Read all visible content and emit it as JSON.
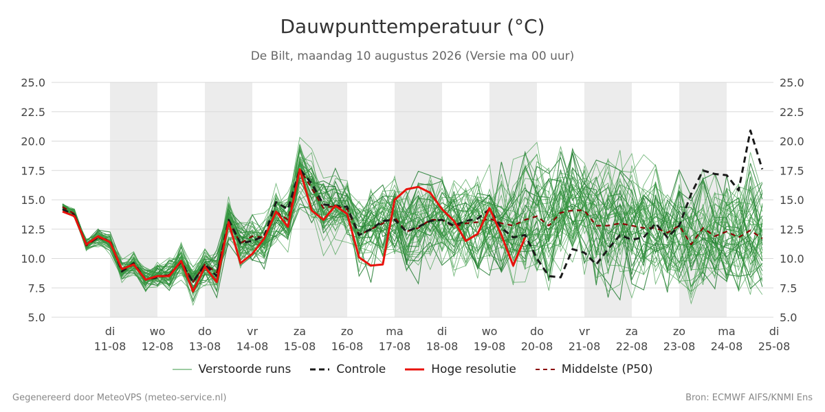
{
  "title": "Dauwpunttemperatuur (°C)",
  "subtitle": "De Bilt, maandag 10 augustus 2026 (Versie ma 00 uur)",
  "footer_left": "Gegenereerd door MeteoVPS (meteo-service.nl)",
  "footer_right": "Bron: ECMWF AIFS/KNMI Ens",
  "colors": {
    "members": "#3a9a45",
    "control": "#1a1a1a",
    "hires": "#e8120c",
    "median": "#8b0000",
    "weekend_band": "#ececec",
    "grid": "#d9d9d9"
  },
  "chart_data": {
    "type": "line",
    "ylim": [
      5.0,
      25.0
    ],
    "yticks": [
      "5.0",
      "7.5",
      "10.0",
      "12.5",
      "15.0",
      "17.5",
      "20.0",
      "22.5",
      "25.0"
    ],
    "x_day_start": 0,
    "x_day_end": 15,
    "x_ticks": [
      {
        "day": "di",
        "date": "11-08"
      },
      {
        "day": "wo",
        "date": "12-08"
      },
      {
        "day": "do",
        "date": "13-08"
      },
      {
        "day": "vr",
        "date": "14-08"
      },
      {
        "day": "za",
        "date": "15-08"
      },
      {
        "day": "zo",
        "date": "16-08"
      },
      {
        "day": "ma",
        "date": "17-08"
      },
      {
        "day": "di",
        "date": "18-08"
      },
      {
        "day": "wo",
        "date": "19-08"
      },
      {
        "day": "do",
        "date": "20-08"
      },
      {
        "day": "vr",
        "date": "21-08"
      },
      {
        "day": "za",
        "date": "22-08"
      },
      {
        "day": "zo",
        "date": "23-08"
      },
      {
        "day": "ma",
        "date": "24-08"
      },
      {
        "day": "di",
        "date": "25-08"
      }
    ],
    "shaded_days": [
      "11-08",
      "13-08",
      "15-08",
      "17-08",
      "19-08",
      "21-08",
      "23-08"
    ],
    "time_step_hours": 6,
    "members_count": 50,
    "series": [
      {
        "name": "Controle",
        "style": "dashed",
        "values": [
          14.2,
          13.7,
          11.2,
          11.8,
          11.5,
          8.9,
          9.6,
          8.2,
          8.4,
          8.6,
          9.7,
          8.0,
          9.5,
          8.5,
          13.3,
          11.3,
          11.5,
          11.9,
          14.8,
          14.2,
          17.6,
          16.4,
          14.6,
          14.5,
          14.4,
          12.0,
          12.5,
          13.2,
          13.3,
          12.3,
          12.7,
          13.2,
          13.3,
          12.8,
          13.2,
          13.4,
          14.2,
          12.6,
          11.8,
          12.0,
          10.0,
          8.5,
          8.4,
          10.8,
          10.5,
          9.5,
          10.8,
          12.0,
          11.6,
          11.8,
          13.0,
          11.8,
          12.8,
          15.5,
          17.5,
          17.2,
          17.1,
          15.8,
          20.9,
          17.6
        ]
      },
      {
        "name": "Hoge resolutie",
        "style": "solid",
        "values": [
          14.0,
          13.6,
          11.2,
          11.9,
          11.4,
          9.1,
          9.5,
          8.2,
          8.5,
          8.5,
          9.8,
          7.2,
          9.3,
          8.0,
          13.1,
          9.6,
          10.4,
          11.7,
          14.0,
          12.7,
          17.6,
          14.1,
          13.3,
          14.5,
          13.8,
          10.1,
          9.4,
          9.5,
          15.0,
          15.9,
          16.1,
          15.6,
          14.2,
          13.2,
          11.5,
          12.1,
          14.3,
          12.0,
          9.4,
          11.8
        ]
      },
      {
        "name": "Middelste (P50)",
        "style": "dashed-thin",
        "values": [
          14.4,
          13.8,
          11.1,
          11.8,
          11.4,
          8.9,
          9.5,
          8.2,
          8.5,
          8.6,
          9.8,
          8.0,
          9.5,
          8.8,
          13.2,
          11.3,
          11.9,
          11.8,
          14.0,
          13.3,
          17.6,
          16.0,
          14.3,
          14.5,
          14.2,
          12.0,
          12.5,
          13.0,
          13.5,
          12.3,
          12.6,
          13.3,
          13.3,
          12.7,
          13.0,
          13.1,
          13.4,
          13.0,
          12.8,
          13.3,
          13.6,
          12.8,
          13.9,
          14.1,
          14.1,
          12.8,
          12.8,
          13.0,
          12.8,
          12.6,
          12.6,
          12.2,
          12.8,
          11.2,
          12.6,
          11.9,
          12.3,
          11.8,
          12.4,
          11.7
        ]
      }
    ],
    "legend": [
      "Verstoorde runs",
      "Controle",
      "Hoge resolutie",
      "Middelste (P50)"
    ],
    "legend_position": "bottom"
  }
}
